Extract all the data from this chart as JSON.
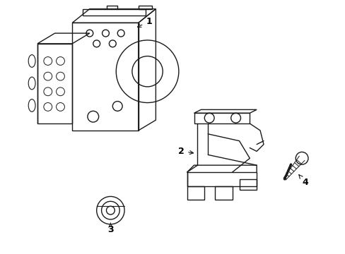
{
  "background_color": "#ffffff",
  "line_color": "#1a1a1a",
  "label_color": "#000000",
  "fig_width": 4.89,
  "fig_height": 3.6,
  "dpi": 100,
  "label_fontsize": 9,
  "label_fontweight": "bold"
}
